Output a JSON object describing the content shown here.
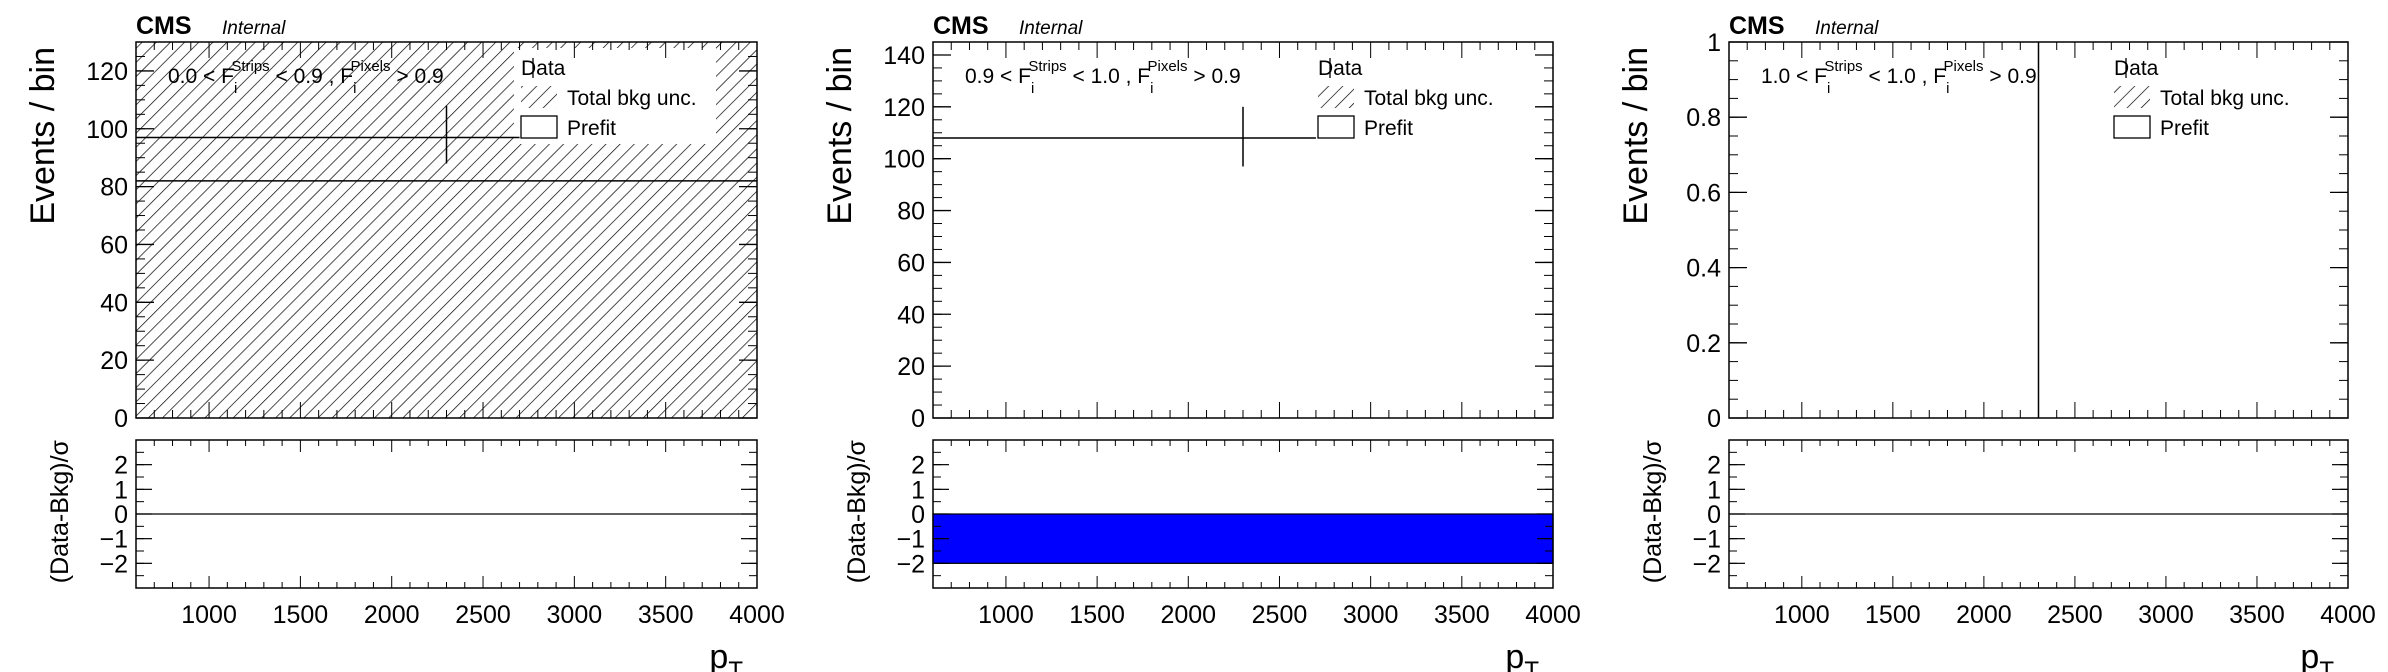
{
  "chart_data": [
    {
      "type": "histogram",
      "experiment": "CMS",
      "status": "Internal",
      "region": {
        "var": "F",
        "sub": "i",
        "sup1": "Strips",
        "sup2": "Pixels",
        "strips_range": [
          "0.0",
          "0.9"
        ],
        "pixels_cut": "0.9"
      },
      "xlabel": "p",
      "xlabel_sub": "T",
      "ylabel": "Events / bin",
      "ratio_ylabel": "(Data-Bkg)/σ",
      "xlim": [
        600,
        4000
      ],
      "ylim": [
        0,
        130
      ],
      "ratio_ylim": [
        -3,
        3
      ],
      "xticks": [
        1000,
        1500,
        2000,
        2500,
        3000,
        3500,
        4000
      ],
      "yticks": [
        0,
        20,
        40,
        60,
        80,
        100,
        120
      ],
      "ratio_yticks": [
        2,
        1,
        0,
        -1,
        -2
      ],
      "legend": [
        "Data",
        "Total bkg unc.",
        "Prefit"
      ],
      "background_prefit": 82,
      "background_unc_band": [
        0,
        130
      ],
      "data_point": {
        "x": 2300,
        "y": 97,
        "xerr": [
          600,
          2700
        ],
        "yerr": [
          88,
          108
        ]
      },
      "ratio_values": [
        0
      ],
      "ratio_band": null
    },
    {
      "type": "histogram",
      "experiment": "CMS",
      "status": "Internal",
      "region": {
        "var": "F",
        "sub": "i",
        "sup1": "Strips",
        "sup2": "Pixels",
        "strips_range": [
          "0.9",
          "1.0"
        ],
        "pixels_cut": "0.9"
      },
      "xlabel": "p",
      "xlabel_sub": "T",
      "ylabel": "Events / bin",
      "ratio_ylabel": "(Data-Bkg)/σ",
      "xlim": [
        600,
        4000
      ],
      "ylim": [
        0,
        145
      ],
      "ratio_ylim": [
        -3,
        3
      ],
      "xticks": [
        1000,
        1500,
        2000,
        2500,
        3000,
        3500,
        4000
      ],
      "yticks": [
        0,
        20,
        40,
        60,
        80,
        100,
        120,
        140
      ],
      "ratio_yticks": [
        2,
        1,
        0,
        -1,
        -2
      ],
      "legend": [
        "Data",
        "Total bkg unc.",
        "Prefit"
      ],
      "background_prefit": null,
      "background_unc_band": null,
      "data_point": {
        "x": 2300,
        "y": 108,
        "xerr": [
          600,
          2700
        ],
        "yerr": [
          97,
          120
        ]
      },
      "ratio_values": null,
      "ratio_band": [
        -2,
        0
      ]
    },
    {
      "type": "histogram",
      "experiment": "CMS",
      "status": "Internal",
      "region": {
        "var": "F",
        "sub": "i",
        "sup1": "Strips",
        "sup2": "Pixels",
        "strips_range": [
          "1.0",
          "1.0"
        ],
        "pixels_cut": "0.9"
      },
      "xlabel": "p",
      "xlabel_sub": "T",
      "ylabel": "Events / bin",
      "ratio_ylabel": "(Data-Bkg)/σ",
      "xlim": [
        600,
        4000
      ],
      "ylim": [
        0,
        1
      ],
      "ratio_ylim": [
        -3,
        3
      ],
      "xticks": [
        1000,
        1500,
        2000,
        2500,
        3000,
        3500,
        4000
      ],
      "yticks": [
        0,
        0.2,
        0.4,
        0.6,
        0.8,
        1
      ],
      "ratio_yticks": [
        2,
        1,
        0,
        -1,
        -2
      ],
      "legend": [
        "Data",
        "Total bkg unc.",
        "Prefit"
      ],
      "background_prefit": null,
      "background_unc_band": null,
      "data_point": null,
      "vertical_line_x": 2300,
      "ratio_values": [
        0
      ],
      "ratio_band": null
    }
  ],
  "colors": {
    "axis": "#000000",
    "ratio_band": "#0000ff",
    "hatch": "#000000"
  }
}
